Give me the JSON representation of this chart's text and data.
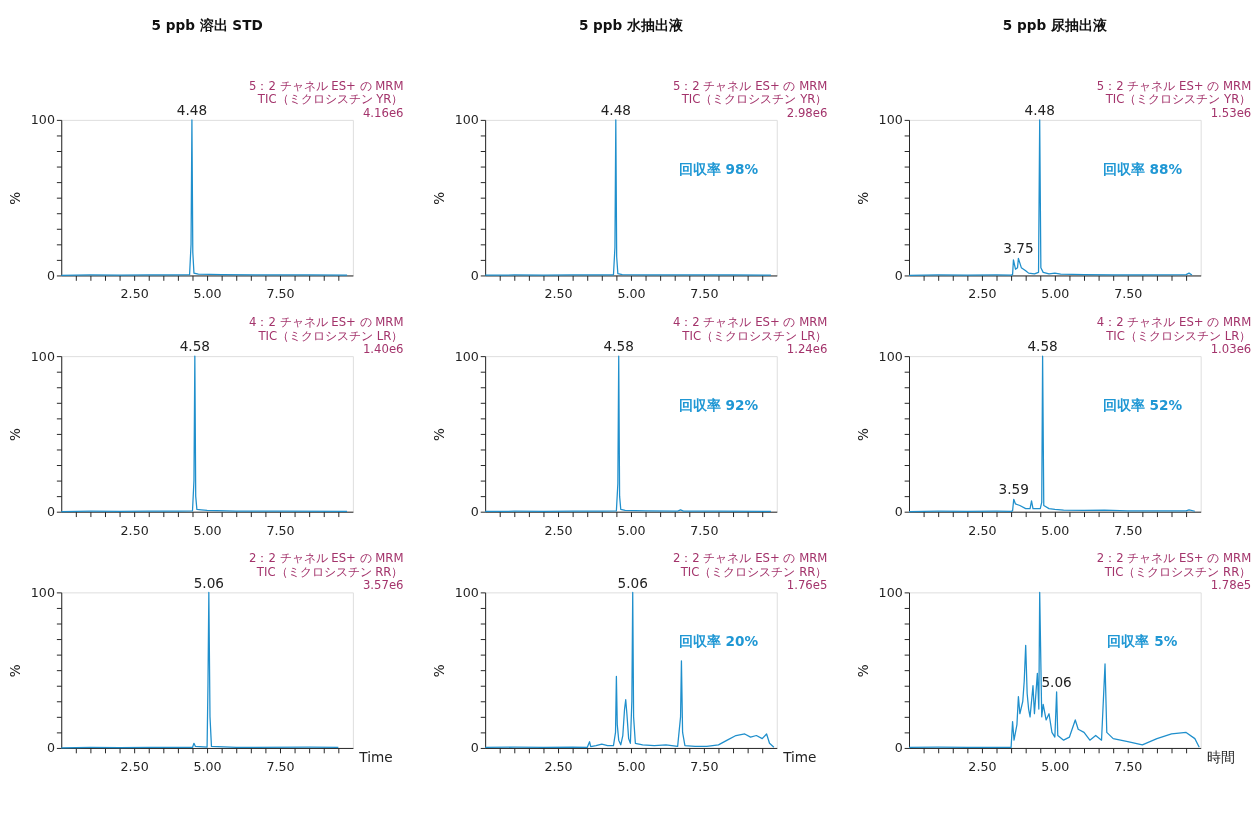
{
  "chart_data": [
    {
      "type": "line",
      "title": "5 ppb 溶出 STD",
      "subtitle": "5：2 チャネル ES+ の MRM\nTIC（ミクロシスチン YR）\n4.16e6",
      "ylabel": "%",
      "grid": false,
      "xlim": [
        0,
        10
      ],
      "ylim": [
        0,
        100
      ],
      "xticks": [
        {
          "value": 0.5,
          "label": null
        },
        {
          "value": 1,
          "label": null
        },
        {
          "value": 1.5,
          "label": null
        },
        {
          "value": 2,
          "label": null
        },
        {
          "value": 2.5,
          "label": "2.50"
        },
        {
          "value": 3,
          "label": null
        },
        {
          "value": 3.5,
          "label": null
        },
        {
          "value": 4,
          "label": null
        },
        {
          "value": 4.5,
          "label": null
        },
        {
          "value": 5,
          "label": "5.00"
        },
        {
          "value": 5.5,
          "label": null
        },
        {
          "value": 6,
          "label": null
        },
        {
          "value": 6.5,
          "label": null
        },
        {
          "value": 7,
          "label": null
        },
        {
          "value": 7.5,
          "label": "7.50"
        },
        {
          "value": 8,
          "label": null
        },
        {
          "value": 8.5,
          "label": null
        },
        {
          "value": 9,
          "label": null
        },
        {
          "value": 9.5,
          "label": null
        }
      ],
      "yticks": [
        0,
        {
          "value": 10,
          "label": null
        },
        {
          "value": 20,
          "label": null
        },
        {
          "value": 30,
          "label": null
        },
        {
          "value": 40,
          "label": null
        },
        {
          "value": 50,
          "label": null
        },
        {
          "value": 60,
          "label": null
        },
        {
          "value": 70,
          "label": null
        },
        {
          "value": 80,
          "label": null
        },
        {
          "value": 90,
          "label": null
        },
        100
      ],
      "series": [
        {
          "color": "#1f8fcc",
          "x": [
            0,
            1,
            2,
            3,
            4,
            4.4,
            4.45,
            4.48,
            4.51,
            4.55,
            4.7,
            5.5,
            7,
            8.5,
            9.8
          ],
          "values": [
            0,
            0.3,
            0.2,
            0.3,
            0.3,
            0.5,
            20,
            100,
            15,
            1.5,
            0.8,
            0.5,
            0.3,
            0.4,
            0.2
          ]
        }
      ],
      "annotations": [
        {
          "text": "4.48",
          "x": 4.48,
          "y": 100
        }
      ]
    },
    {
      "type": "line",
      "title": "5 ppb 水抽出液",
      "subtitle": "5：2 チャネル ES+ の MRM\nTIC（ミクロシスチン YR）\n2.98e6",
      "ylabel": "%",
      "grid": false,
      "xlim": [
        0,
        10
      ],
      "ylim": [
        0,
        100
      ],
      "xticks": [
        {
          "value": 0.5,
          "label": null
        },
        {
          "value": 1,
          "label": null
        },
        {
          "value": 1.5,
          "label": null
        },
        {
          "value": 2,
          "label": null
        },
        {
          "value": 2.5,
          "label": "2.50"
        },
        {
          "value": 3,
          "label": null
        },
        {
          "value": 3.5,
          "label": null
        },
        {
          "value": 4,
          "label": null
        },
        {
          "value": 4.5,
          "label": null
        },
        {
          "value": 5,
          "label": "5.00"
        },
        {
          "value": 5.5,
          "label": null
        },
        {
          "value": 6,
          "label": null
        },
        {
          "value": 6.5,
          "label": null
        },
        {
          "value": 7,
          "label": null
        },
        {
          "value": 7.5,
          "label": "7.50"
        },
        {
          "value": 8,
          "label": null
        },
        {
          "value": 8.5,
          "label": null
        },
        {
          "value": 9,
          "label": null
        },
        {
          "value": 9.5,
          "label": null
        }
      ],
      "yticks": [
        0,
        {
          "value": 10,
          "label": null
        },
        {
          "value": 20,
          "label": null
        },
        {
          "value": 30,
          "label": null
        },
        {
          "value": 40,
          "label": null
        },
        {
          "value": 50,
          "label": null
        },
        {
          "value": 60,
          "label": null
        },
        {
          "value": 70,
          "label": null
        },
        {
          "value": 80,
          "label": null
        },
        {
          "value": 90,
          "label": null
        },
        100
      ],
      "series": [
        {
          "color": "#1f8fcc",
          "x": [
            0,
            1,
            2,
            3,
            4,
            4.4,
            4.45,
            4.48,
            4.51,
            4.55,
            4.7,
            5.5,
            7,
            8.5,
            9.8
          ],
          "values": [
            0.2,
            0.3,
            0.2,
            0.3,
            0.3,
            0.4,
            18,
            100,
            12,
            1.2,
            0.6,
            0.4,
            0.3,
            0.4,
            0.2
          ]
        }
      ],
      "annotations": [
        {
          "text": "4.48",
          "x": 4.48,
          "y": 100
        },
        "回収率 98%"
      ]
    },
    {
      "type": "line",
      "title": "5 ppb 尿抽出液",
      "subtitle": "5：2 チャネル ES+ の MRM\nTIC（ミクロシスチン YR）\n1.53e6",
      "ylabel": "%",
      "grid": false,
      "xlim": [
        0,
        10
      ],
      "ylim": [
        0,
        100
      ],
      "xticks": [
        {
          "value": 0.5,
          "label": null
        },
        {
          "value": 1,
          "label": null
        },
        {
          "value": 1.5,
          "label": null
        },
        {
          "value": 2,
          "label": null
        },
        {
          "value": 2.5,
          "label": "2.50"
        },
        {
          "value": 3,
          "label": null
        },
        {
          "value": 3.5,
          "label": null
        },
        {
          "value": 4,
          "label": null
        },
        {
          "value": 4.5,
          "label": null
        },
        {
          "value": 5,
          "label": "5.00"
        },
        {
          "value": 5.5,
          "label": null
        },
        {
          "value": 6,
          "label": null
        },
        {
          "value": 6.5,
          "label": null
        },
        {
          "value": 7,
          "label": null
        },
        {
          "value": 7.5,
          "label": "7.50"
        },
        {
          "value": 8,
          "label": null
        },
        {
          "value": 8.5,
          "label": null
        },
        {
          "value": 9,
          "label": null
        },
        {
          "value": 9.5,
          "label": null
        }
      ],
      "yticks": [
        0,
        {
          "value": 10,
          "label": null
        },
        {
          "value": 20,
          "label": null
        },
        {
          "value": 30,
          "label": null
        },
        {
          "value": 40,
          "label": null
        },
        {
          "value": 50,
          "label": null
        },
        {
          "value": 60,
          "label": null
        },
        {
          "value": 70,
          "label": null
        },
        {
          "value": 80,
          "label": null
        },
        {
          "value": 90,
          "label": null
        },
        100
      ],
      "series": [
        {
          "color": "#1f8fcc",
          "x": [
            0,
            1,
            2,
            3,
            3.5,
            3.55,
            3.58,
            3.65,
            3.72,
            3.75,
            3.85,
            4.0,
            4.1,
            4.3,
            4.44,
            4.48,
            4.52,
            4.6,
            4.8,
            5.0,
            5.2,
            6,
            7,
            8,
            9.5,
            9.6,
            9.7
          ],
          "values": [
            0,
            0.3,
            0.2,
            0.3,
            0.2,
            0.5,
            10,
            4,
            5,
            11,
            5,
            3,
            1.5,
            1,
            2,
            100,
            5,
            2,
            1,
            1.5,
            0.8,
            0.5,
            0.4,
            0.3,
            0.5,
            1.5,
            0.3
          ]
        }
      ],
      "annotations": [
        {
          "text": "4.48",
          "x": 4.48,
          "y": 100
        },
        {
          "text": "3.75",
          "x": 3.75,
          "y": 11
        },
        "回収率 88%"
      ]
    },
    {
      "type": "line",
      "subtitle": "4：2 チャネル ES+ の MRM\nTIC（ミクロシスチン LR）\n1.40e6",
      "ylabel": "%",
      "grid": false,
      "xlim": [
        0,
        10
      ],
      "ylim": [
        0,
        100
      ],
      "xticks": [
        {
          "value": 0.5,
          "label": null
        },
        {
          "value": 1,
          "label": null
        },
        {
          "value": 1.5,
          "label": null
        },
        {
          "value": 2,
          "label": null
        },
        {
          "value": 2.5,
          "label": "2.50"
        },
        {
          "value": 3,
          "label": null
        },
        {
          "value": 3.5,
          "label": null
        },
        {
          "value": 4,
          "label": null
        },
        {
          "value": 4.5,
          "label": null
        },
        {
          "value": 5,
          "label": "5.00"
        },
        {
          "value": 5.5,
          "label": null
        },
        {
          "value": 6,
          "label": null
        },
        {
          "value": 6.5,
          "label": null
        },
        {
          "value": 7,
          "label": null
        },
        {
          "value": 7.5,
          "label": "7.50"
        },
        {
          "value": 8,
          "label": null
        },
        {
          "value": 8.5,
          "label": null
        },
        {
          "value": 9,
          "label": null
        },
        {
          "value": 9.5,
          "label": null
        }
      ],
      "yticks": [
        0,
        {
          "value": 10,
          "label": null
        },
        {
          "value": 20,
          "label": null
        },
        {
          "value": 30,
          "label": null
        },
        {
          "value": 40,
          "label": null
        },
        {
          "value": 50,
          "label": null
        },
        {
          "value": 60,
          "label": null
        },
        {
          "value": 70,
          "label": null
        },
        {
          "value": 80,
          "label": null
        },
        {
          "value": 90,
          "label": null
        },
        100
      ],
      "series": [
        {
          "color": "#1f8fcc",
          "x": [
            0,
            1,
            2,
            3,
            4,
            4.5,
            4.55,
            4.58,
            4.61,
            4.65,
            4.8,
            5.0,
            6,
            7.5,
            9.8
          ],
          "values": [
            0,
            0.3,
            0.2,
            0.3,
            0.3,
            0.5,
            20,
            100,
            10,
            1.5,
            1.2,
            0.8,
            0.4,
            0.3,
            0.2
          ]
        }
      ],
      "annotations": [
        {
          "text": "4.58",
          "x": 4.58,
          "y": 100
        }
      ]
    },
    {
      "type": "line",
      "subtitle": "4：2 チャネル ES+ の MRM\nTIC（ミクロシスチン LR）\n1.24e6",
      "ylabel": "%",
      "grid": false,
      "xlim": [
        0,
        10
      ],
      "ylim": [
        0,
        100
      ],
      "xticks": [
        {
          "value": 0.5,
          "label": null
        },
        {
          "value": 1,
          "label": null
        },
        {
          "value": 1.5,
          "label": null
        },
        {
          "value": 2,
          "label": null
        },
        {
          "value": 2.5,
          "label": "2.50"
        },
        {
          "value": 3,
          "label": null
        },
        {
          "value": 3.5,
          "label": null
        },
        {
          "value": 4,
          "label": null
        },
        {
          "value": 4.5,
          "label": null
        },
        {
          "value": 5,
          "label": "5.00"
        },
        {
          "value": 5.5,
          "label": null
        },
        {
          "value": 6,
          "label": null
        },
        {
          "value": 6.5,
          "label": null
        },
        {
          "value": 7,
          "label": null
        },
        {
          "value": 7.5,
          "label": "7.50"
        },
        {
          "value": 8,
          "label": null
        },
        {
          "value": 8.5,
          "label": null
        },
        {
          "value": 9,
          "label": null
        },
        {
          "value": 9.5,
          "label": null
        }
      ],
      "yticks": [
        0,
        {
          "value": 10,
          "label": null
        },
        {
          "value": 20,
          "label": null
        },
        {
          "value": 30,
          "label": null
        },
        {
          "value": 40,
          "label": null
        },
        {
          "value": 50,
          "label": null
        },
        {
          "value": 60,
          "label": null
        },
        {
          "value": 70,
          "label": null
        },
        {
          "value": 80,
          "label": null
        },
        {
          "value": 90,
          "label": null
        },
        100
      ],
      "series": [
        {
          "color": "#1f8fcc",
          "x": [
            0,
            1,
            2,
            3,
            4,
            4.5,
            4.55,
            4.58,
            4.61,
            4.65,
            4.8,
            5.5,
            6.6,
            6.7,
            6.8,
            8,
            9.8
          ],
          "values": [
            0.2,
            0.3,
            0.2,
            0.3,
            0.3,
            0.5,
            18,
            100,
            10,
            1.5,
            0.8,
            0.5,
            0.4,
            1.2,
            0.4,
            0.3,
            0.2
          ]
        }
      ],
      "annotations": [
        {
          "text": "4.58",
          "x": 4.58,
          "y": 100
        },
        "回収率 92%"
      ]
    },
    {
      "type": "line",
      "subtitle": "4：2 チャネル ES+ の MRM\nTIC（ミクロシスチン LR）\n1.03e6",
      "ylabel": "%",
      "grid": false,
      "xlim": [
        0,
        10
      ],
      "ylim": [
        0,
        100
      ],
      "xticks": [
        {
          "value": 0.5,
          "label": null
        },
        {
          "value": 1,
          "label": null
        },
        {
          "value": 1.5,
          "label": null
        },
        {
          "value": 2,
          "label": null
        },
        {
          "value": 2.5,
          "label": "2.50"
        },
        {
          "value": 3,
          "label": null
        },
        {
          "value": 3.5,
          "label": null
        },
        {
          "value": 4,
          "label": null
        },
        {
          "value": 4.5,
          "label": null
        },
        {
          "value": 5,
          "label": "5.00"
        },
        {
          "value": 5.5,
          "label": null
        },
        {
          "value": 6,
          "label": null
        },
        {
          "value": 6.5,
          "label": null
        },
        {
          "value": 7,
          "label": null
        },
        {
          "value": 7.5,
          "label": "7.50"
        },
        {
          "value": 8,
          "label": null
        },
        {
          "value": 8.5,
          "label": null
        },
        {
          "value": 9,
          "label": null
        },
        {
          "value": 9.5,
          "label": null
        }
      ],
      "yticks": [
        0,
        {
          "value": 10,
          "label": null
        },
        {
          "value": 20,
          "label": null
        },
        {
          "value": 30,
          "label": null
        },
        {
          "value": 40,
          "label": null
        },
        {
          "value": 50,
          "label": null
        },
        {
          "value": 60,
          "label": null
        },
        {
          "value": 70,
          "label": null
        },
        {
          "value": 80,
          "label": null
        },
        {
          "value": 90,
          "label": null
        },
        100
      ],
      "series": [
        {
          "color": "#1f8fcc",
          "x": [
            0,
            1,
            2,
            3,
            3.5,
            3.55,
            3.59,
            3.65,
            3.8,
            4.0,
            4.15,
            4.2,
            4.25,
            4.5,
            4.55,
            4.58,
            4.62,
            4.8,
            5.0,
            5.3,
            6,
            6.7,
            7.5,
            9.5,
            9.6,
            9.8
          ],
          "values": [
            0,
            0.3,
            0.2,
            0.3,
            0.2,
            0.5,
            8,
            5,
            4,
            2,
            2,
            7,
            2,
            2,
            6,
            100,
            4,
            2,
            1.5,
            1,
            0.8,
            1,
            0.5,
            0.5,
            1.2,
            0.3
          ]
        }
      ],
      "annotations": [
        {
          "text": "4.58",
          "x": 4.58,
          "y": 100
        },
        {
          "text": "3.59",
          "x": 3.59,
          "y": 8
        },
        "回収率 52%"
      ]
    },
    {
      "type": "line",
      "subtitle": "2：2 チャネル ES+ の MRM\nTIC（ミクロシスチン RR）\n3.57e6",
      "xlabel": "Time",
      "ylabel": "%",
      "grid": false,
      "xlim": [
        0,
        10
      ],
      "ylim": [
        0,
        100
      ],
      "xticks": [
        {
          "value": 0.5,
          "label": null
        },
        {
          "value": 1,
          "label": null
        },
        {
          "value": 1.5,
          "label": null
        },
        {
          "value": 2,
          "label": null
        },
        {
          "value": 2.5,
          "label": "2.50"
        },
        {
          "value": 3,
          "label": null
        },
        {
          "value": 3.5,
          "label": null
        },
        {
          "value": 4,
          "label": null
        },
        {
          "value": 4.5,
          "label": null
        },
        {
          "value": 5,
          "label": "5.00"
        },
        {
          "value": 5.5,
          "label": null
        },
        {
          "value": 6,
          "label": null
        },
        {
          "value": 6.5,
          "label": null
        },
        {
          "value": 7,
          "label": null
        },
        {
          "value": 7.5,
          "label": "7.50"
        },
        {
          "value": 8,
          "label": null
        },
        {
          "value": 8.5,
          "label": null
        },
        {
          "value": 9,
          "label": null
        },
        {
          "value": 9.5,
          "label": null
        }
      ],
      "yticks": [
        0,
        {
          "value": 10,
          "label": null
        },
        {
          "value": 20,
          "label": null
        },
        {
          "value": 30,
          "label": null
        },
        {
          "value": 40,
          "label": null
        },
        {
          "value": 50,
          "label": null
        },
        {
          "value": 60,
          "label": null
        },
        {
          "value": 70,
          "label": null
        },
        {
          "value": 80,
          "label": null
        },
        {
          "value": 90,
          "label": null
        },
        100
      ],
      "series": [
        {
          "color": "#1f8fcc",
          "x": [
            0,
            1,
            2,
            3,
            4,
            4.5,
            4.55,
            4.6,
            5.0,
            5.03,
            5.06,
            5.1,
            5.15,
            6,
            8.5,
            9.5
          ],
          "values": [
            0,
            0.3,
            0.2,
            0.3,
            0.3,
            0.3,
            3,
            1,
            0.5,
            40,
            100,
            20,
            1,
            0.4,
            0.5,
            0.3
          ]
        }
      ],
      "annotations": [
        {
          "text": "5.06",
          "x": 5.06,
          "y": 100
        }
      ]
    },
    {
      "type": "line",
      "subtitle": "2：2 チャネル ES+ の MRM\nTIC（ミクロシスチン RR）\n1.76e5",
      "xlabel": "Time",
      "ylabel": "%",
      "grid": false,
      "xlim": [
        0,
        10
      ],
      "ylim": [
        0,
        100
      ],
      "xticks": [
        {
          "value": 0.5,
          "label": null
        },
        {
          "value": 1,
          "label": null
        },
        {
          "value": 1.5,
          "label": null
        },
        {
          "value": 2,
          "label": null
        },
        {
          "value": 2.5,
          "label": "2.50"
        },
        {
          "value": 3,
          "label": null
        },
        {
          "value": 3.5,
          "label": null
        },
        {
          "value": 4,
          "label": null
        },
        {
          "value": 4.5,
          "label": null
        },
        {
          "value": 5,
          "label": "5.00"
        },
        {
          "value": 5.5,
          "label": null
        },
        {
          "value": 6,
          "label": null
        },
        {
          "value": 6.5,
          "label": null
        },
        {
          "value": 7,
          "label": null
        },
        {
          "value": 7.5,
          "label": "7.50"
        },
        {
          "value": 8,
          "label": null
        },
        {
          "value": 8.5,
          "label": null
        },
        {
          "value": 9,
          "label": null
        },
        {
          "value": 9.5,
          "label": null
        }
      ],
      "yticks": [
        0,
        {
          "value": 10,
          "label": null
        },
        {
          "value": 20,
          "label": null
        },
        {
          "value": 30,
          "label": null
        },
        {
          "value": 40,
          "label": null
        },
        {
          "value": 50,
          "label": null
        },
        {
          "value": 60,
          "label": null
        },
        {
          "value": 70,
          "label": null
        },
        {
          "value": 80,
          "label": null
        },
        {
          "value": 90,
          "label": null
        },
        100
      ],
      "series": [
        {
          "color": "#1f8fcc",
          "x": [
            0,
            1,
            2,
            3,
            3.5,
            3.58,
            3.62,
            3.8,
            4.0,
            4.2,
            4.4,
            4.47,
            4.5,
            4.53,
            4.58,
            4.65,
            4.72,
            4.78,
            4.82,
            4.86,
            4.92,
            4.98,
            5.03,
            5.06,
            5.09,
            5.15,
            5.4,
            5.8,
            6.2,
            6.6,
            6.7,
            6.73,
            6.77,
            6.85,
            7.2,
            7.6,
            8.0,
            8.3,
            8.6,
            8.9,
            9.1,
            9.3,
            9.5,
            9.65,
            9.75,
            9.9
          ],
          "values": [
            0.3,
            0.5,
            0.4,
            0.5,
            0.3,
            4,
            0.8,
            1.5,
            2.5,
            1.5,
            1.5,
            10,
            46,
            15,
            5,
            2,
            8,
            25,
            31,
            22,
            6,
            3,
            30,
            100,
            20,
            3,
            2,
            1.5,
            2,
            1,
            20,
            56,
            10,
            1.5,
            1,
            1,
            2,
            5,
            8,
            9,
            7,
            8,
            6,
            9,
            3,
            0.5
          ]
        }
      ],
      "annotations": [
        {
          "text": "5.06",
          "x": 5.06,
          "y": 100
        },
        "回収率 20%"
      ]
    },
    {
      "type": "line",
      "subtitle": "2：2 チャネル ES+ の MRM\nTIC（ミクロシスチン RR）\n1.78e5",
      "xlabel": "時間",
      "ylabel": "%",
      "grid": false,
      "xlim": [
        0,
        10
      ],
      "ylim": [
        0,
        100
      ],
      "xticks": [
        {
          "value": 0.5,
          "label": null
        },
        {
          "value": 1,
          "label": null
        },
        {
          "value": 1.5,
          "label": null
        },
        {
          "value": 2,
          "label": null
        },
        {
          "value": 2.5,
          "label": "2.50"
        },
        {
          "value": 3,
          "label": null
        },
        {
          "value": 3.5,
          "label": null
        },
        {
          "value": 4,
          "label": null
        },
        {
          "value": 4.5,
          "label": null
        },
        {
          "value": 5,
          "label": "5.00"
        },
        {
          "value": 5.5,
          "label": null
        },
        {
          "value": 6,
          "label": null
        },
        {
          "value": 6.5,
          "label": null
        },
        {
          "value": 7,
          "label": null
        },
        {
          "value": 7.5,
          "label": "7.50"
        },
        {
          "value": 8,
          "label": null
        },
        {
          "value": 8.5,
          "label": null
        },
        {
          "value": 9,
          "label": null
        },
        {
          "value": 9.5,
          "label": null
        }
      ],
      "yticks": [
        0,
        {
          "value": 10,
          "label": null
        },
        {
          "value": 20,
          "label": null
        },
        {
          "value": 30,
          "label": null
        },
        {
          "value": 40,
          "label": null
        },
        {
          "value": 50,
          "label": null
        },
        {
          "value": 60,
          "label": null
        },
        {
          "value": 70,
          "label": null
        },
        {
          "value": 80,
          "label": null
        },
        {
          "value": 90,
          "label": null
        },
        100
      ],
      "series": [
        {
          "color": "#1f8fcc",
          "x": [
            0,
            1,
            2,
            3,
            3.5,
            3.55,
            3.6,
            3.7,
            3.75,
            3.8,
            3.9,
            3.95,
            4.0,
            4.05,
            4.1,
            4.15,
            4.25,
            4.3,
            4.4,
            4.45,
            4.48,
            4.55,
            4.6,
            4.7,
            4.8,
            4.9,
            5.0,
            5.06,
            5.1,
            5.3,
            5.5,
            5.7,
            5.8,
            6.0,
            6.2,
            6.4,
            6.6,
            6.72,
            6.78,
            7.0,
            7.5,
            8.0,
            8.5,
            9.0,
            9.5,
            9.8,
            9.95
          ],
          "values": [
            0.3,
            0.5,
            0.4,
            0.3,
            0.3,
            17,
            5,
            15,
            33,
            22,
            30,
            43,
            66,
            35,
            25,
            20,
            40,
            22,
            48,
            25,
            100,
            20,
            28,
            18,
            22,
            10,
            7,
            36,
            8,
            5,
            7,
            18,
            12,
            10,
            5,
            8,
            5,
            54,
            10,
            6,
            4,
            2,
            6,
            9,
            10,
            6,
            0.5
          ]
        }
      ],
      "annotations": [
        {
          "text": "5.06",
          "x": 5.06,
          "y": 36
        },
        "回収率 5%"
      ]
    }
  ]
}
